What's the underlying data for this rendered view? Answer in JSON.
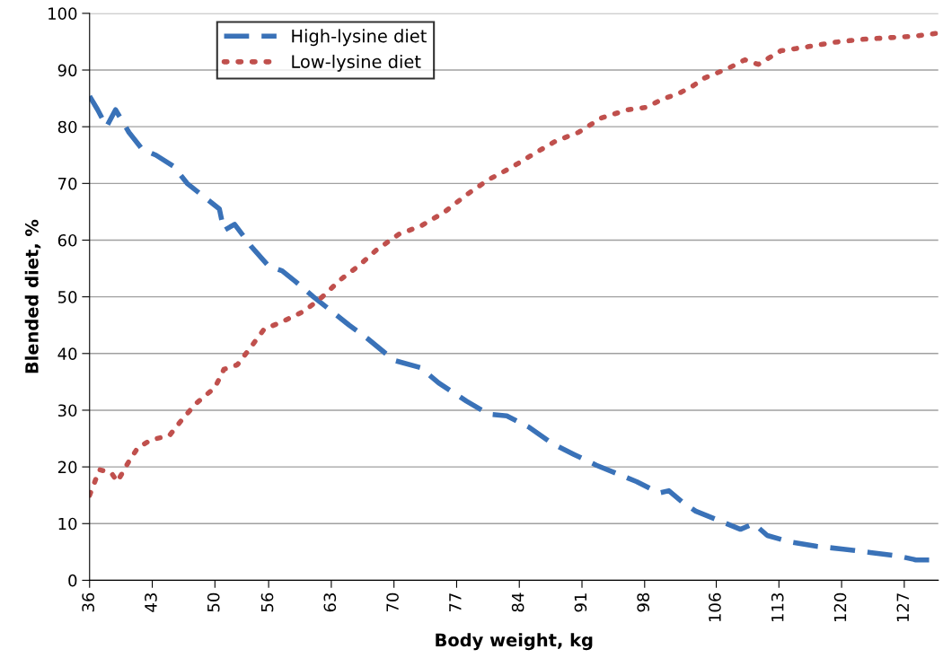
{
  "chart_data": {
    "type": "line",
    "xlabel": "Body weight, kg",
    "ylabel": "Blended diet, %",
    "xlim": [
      36,
      130.8
    ],
    "ylim": [
      0,
      100
    ],
    "xticks": [
      36,
      43,
      50,
      56,
      63,
      70,
      77,
      84,
      91,
      98,
      106,
      113,
      120,
      127
    ],
    "yticks": [
      0,
      10,
      20,
      30,
      40,
      50,
      60,
      70,
      80,
      90,
      100
    ],
    "grid": "y",
    "legend": "top left",
    "marker": "none",
    "series": [
      {
        "name": "High-lysine diet",
        "color": "#3a72b8",
        "line_style": "dashed",
        "x": [
          36,
          36.9,
          37.9,
          38.9,
          40.4,
          41.9,
          43.4,
          45.4,
          46.9,
          48.9,
          50.5,
          51,
          52.2,
          54,
          56,
          57.5,
          59,
          61,
          63,
          65,
          67,
          70,
          73,
          75,
          78.1,
          80.6,
          82.6,
          85.1,
          87.6,
          90.1,
          92.6,
          95.1,
          97.1,
          99.6,
          100.7,
          102.2,
          103.7,
          106.2,
          108.7,
          110.2,
          111.7,
          114.2,
          117.2,
          120.2,
          123.2,
          126.3,
          128.3,
          130.8
        ],
        "values": [
          85.4,
          83,
          80,
          83,
          79,
          76,
          75,
          73,
          70,
          67.5,
          65.5,
          61.7,
          62.8,
          59,
          55.4,
          54.6,
          52.7,
          50,
          47.5,
          45,
          42.7,
          38.8,
          37.5,
          34.8,
          31.6,
          29.3,
          29,
          27,
          24.2,
          22.2,
          20.3,
          18.7,
          17.4,
          15.4,
          15.8,
          13.8,
          12.2,
          10.6,
          9,
          10,
          7.9,
          6.8,
          6,
          5.5,
          4.9,
          4.3,
          3.6,
          3.6
        ]
      },
      {
        "name": "Low-lysine diet",
        "color": "#c0504d",
        "line_style": "dotted",
        "x": [
          36,
          37.1,
          38.4,
          39.1,
          40.4,
          41.4,
          42.9,
          44.9,
          46.4,
          47.9,
          50,
          51,
          52.5,
          54,
          55.5,
          57.5,
          60,
          62,
          64,
          66,
          68,
          70.5,
          73,
          75.6,
          78.1,
          80.6,
          83.1,
          85.6,
          88.1,
          90.6,
          93.1,
          96.1,
          98.1,
          100.2,
          101.7,
          103.2,
          104.7,
          107.2,
          109.2,
          110.7,
          113.2,
          116.2,
          119.2,
          122.2,
          125.3,
          128.3,
          130.8
        ],
        "values": [
          15,
          19.5,
          19,
          17.4,
          21,
          23.4,
          24.8,
          25.5,
          28.5,
          31.2,
          34,
          37.2,
          38,
          41.1,
          44.3,
          45.6,
          47.5,
          50,
          53,
          55.4,
          58.2,
          61,
          62.5,
          64.9,
          68,
          70.7,
          72.8,
          75.2,
          77.5,
          79,
          81.5,
          83,
          83.4,
          85,
          85.8,
          87,
          88.6,
          90.2,
          91.8,
          91,
          93.4,
          94.1,
          94.9,
          95.4,
          95.7,
          96,
          96.5
        ]
      }
    ]
  }
}
